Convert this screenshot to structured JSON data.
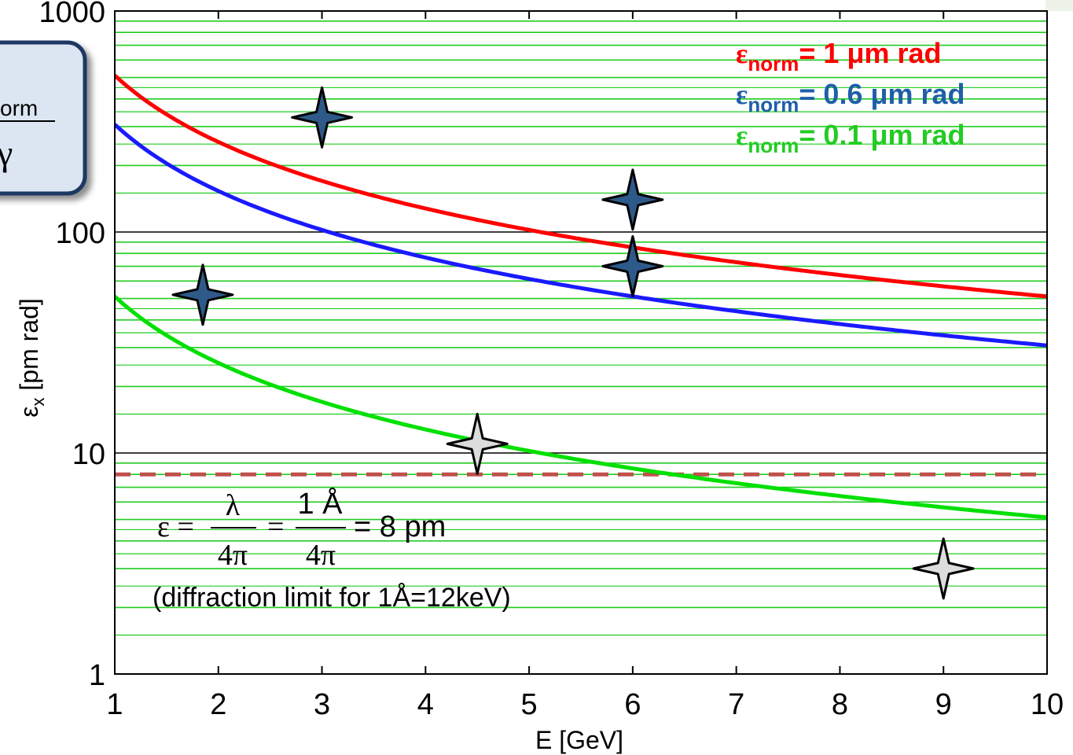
{
  "chart_data": {
    "type": "line",
    "xlabel": "E [GeV]",
    "ylabel": "εx [pm rad]",
    "ylabel_main": "ε",
    "ylabel_sub": "x",
    "ylabel_rest": " [pm rad]",
    "xlim": [
      1,
      10
    ],
    "ylim": [
      1,
      1000
    ],
    "yscale": "log",
    "x_ticks": [
      1,
      2,
      3,
      4,
      5,
      6,
      7,
      8,
      9,
      10
    ],
    "y_ticks": [
      1,
      10,
      100,
      1000
    ],
    "grid": true,
    "legend_position": "top-right",
    "series": [
      {
        "label_main": "ε",
        "label_sub": "norm",
        "label_rest": "= 1 μm rad",
        "norm_um": 1.0,
        "color": "#ff0000"
      },
      {
        "label_main": "ε",
        "label_sub": "norm",
        "label_rest": "= 0.6 μm rad",
        "norm_um": 0.6,
        "color": "#1a1aff"
      },
      {
        "label_main": "ε",
        "label_sub": "norm",
        "label_rest": "= 0.1 μm rad",
        "norm_um": 0.1,
        "color": "#00e000"
      }
    ],
    "curve_x": [
      1,
      1.5,
      2,
      2.5,
      3,
      3.5,
      4,
      4.5,
      5,
      5.5,
      6,
      6.5,
      7,
      7.5,
      8,
      8.5,
      9,
      9.5,
      10
    ],
    "diffraction_limit": {
      "value": 8,
      "color": "#c0504d",
      "style": "dashed"
    },
    "markers": [
      {
        "x": 1.85,
        "y": 52,
        "style": "dark"
      },
      {
        "x": 3.0,
        "y": 330,
        "style": "dark"
      },
      {
        "x": 6.0,
        "y": 140,
        "style": "dark"
      },
      {
        "x": 6.0,
        "y": 70,
        "style": "dark"
      },
      {
        "x": 4.5,
        "y": 11,
        "style": "light"
      },
      {
        "x": 9.0,
        "y": 3,
        "style": "light"
      }
    ],
    "formula": {
      "lhs": "ε =",
      "frac1_num": "λ",
      "frac1_den": "4π",
      "eq1": "=",
      "frac2_num": "1 Å",
      "frac2_den": "4π",
      "rhs": "= 8 pm"
    },
    "annotation": "(diffraction limit for 1Å=12keV)",
    "inset": {
      "fragment_top": "orm",
      "fragment_bottom": "γ"
    },
    "colors": {
      "grid_minor": "#22cc22",
      "grid_major": "#000000",
      "dark_star_fill": "#2e5a8a",
      "light_star_fill": "#dcdcdc",
      "inset_fill": "#dce6f2",
      "inset_border": "#1f3864"
    }
  }
}
